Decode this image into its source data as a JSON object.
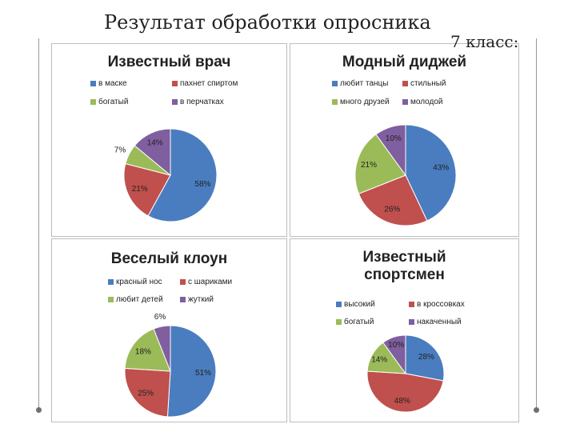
{
  "page": {
    "title": "Результат обработки опросника",
    "subtitle": "7 класс:"
  },
  "colors": {
    "blue": "#4a7dbf",
    "red": "#c0504d",
    "green": "#9bbb59",
    "purple": "#7f5f9f"
  },
  "chart_data": [
    {
      "type": "pie",
      "title": "Известный врач",
      "labels": [
        "в маске",
        "пахнет спиртом",
        "богатый",
        "в перчатках"
      ],
      "values": [
        58,
        21,
        7,
        14
      ],
      "data_labels": [
        "58%",
        "21%",
        "7%",
        "14%"
      ]
    },
    {
      "type": "pie",
      "title": "Модный диджей",
      "labels": [
        "любит танцы",
        "стильный",
        "много друзей",
        "молодой"
      ],
      "values": [
        43,
        26,
        21,
        10
      ],
      "data_labels": [
        "43%",
        "26%",
        "21%",
        "10%"
      ]
    },
    {
      "type": "pie",
      "title": "Веселый клоун",
      "labels": [
        "красный нос",
        "с шариками",
        "любит детей",
        "жуткий"
      ],
      "values": [
        51,
        25,
        18,
        6
      ],
      "data_labels": [
        "51%",
        "25%",
        "18%",
        "6%"
      ]
    },
    {
      "type": "pie",
      "title": "Известный спортсмен",
      "labels": [
        "высокий",
        "в кроссовках",
        "богатый",
        "накаченный"
      ],
      "values": [
        28,
        48,
        14,
        10
      ],
      "data_labels": [
        "28%",
        "48%",
        "14%",
        "10%"
      ]
    }
  ]
}
